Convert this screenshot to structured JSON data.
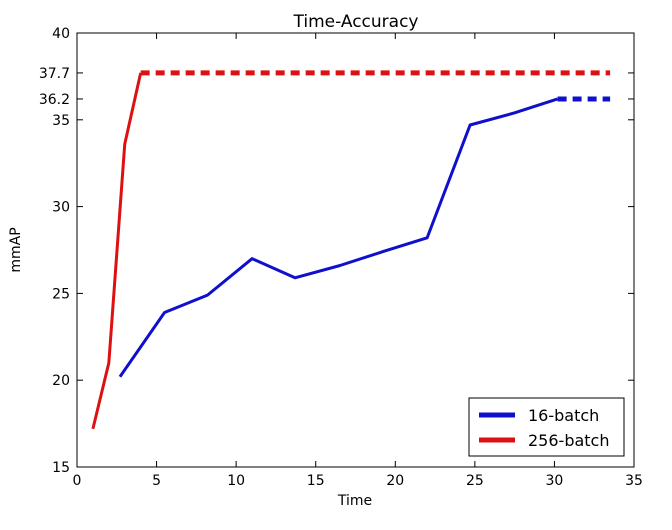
{
  "chart_data": {
    "type": "line",
    "title": "Time-Accuracy",
    "xlabel": "Time",
    "ylabel": "mmAP",
    "xlim": [
      0,
      35
    ],
    "ylim": [
      15,
      40
    ],
    "xticks": [
      0,
      5,
      10,
      15,
      20,
      25,
      30,
      35
    ],
    "yticks": [
      15,
      20,
      25,
      30,
      35,
      36.2,
      37.7,
      40
    ],
    "grid": false,
    "legend": "bottom-right",
    "series": [
      {
        "name": "16-batch",
        "color": "#1010cc",
        "x": [
          2.7,
          5.5,
          8.2,
          11.0,
          13.7,
          16.5,
          19.2,
          22.0,
          24.7,
          27.5,
          30.2
        ],
        "y": [
          20.2,
          23.9,
          24.9,
          27.0,
          25.9,
          26.6,
          27.4,
          28.2,
          34.7,
          35.4,
          36.2
        ],
        "extension": {
          "x": [
            30.2,
            33.5
          ],
          "y": [
            36.2,
            36.2
          ],
          "style": "dashed"
        }
      },
      {
        "name": "256-batch",
        "color": "#dd1111",
        "x": [
          1.0,
          2.0,
          3.0,
          4.0
        ],
        "y": [
          17.2,
          21.0,
          33.6,
          37.7
        ],
        "extension": {
          "x": [
            4.0,
            33.5
          ],
          "y": [
            37.7,
            37.7
          ],
          "style": "dashed"
        }
      }
    ]
  }
}
